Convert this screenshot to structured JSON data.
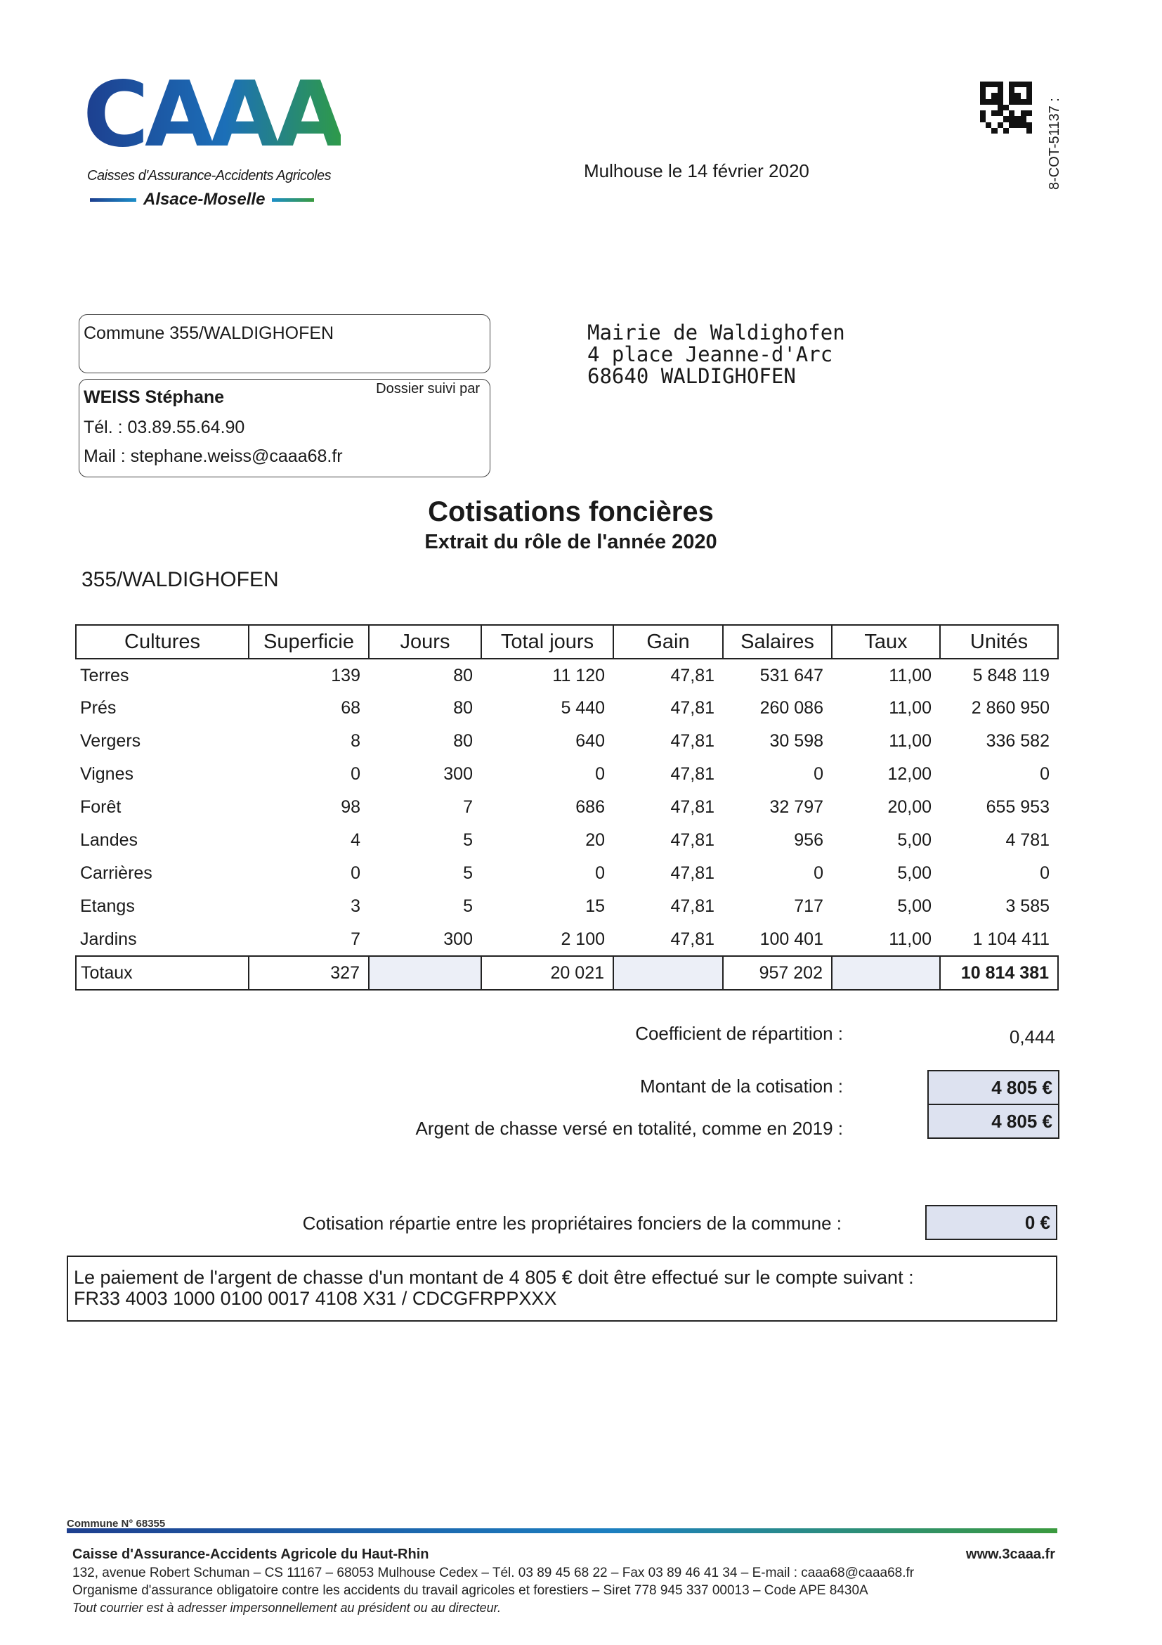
{
  "header": {
    "logo_text": "CAAA",
    "logo_subtitle": "Caisses d'Assurance-Accidents Agricoles",
    "logo_region": "Alsace-Moselle",
    "reference": "8-COT-51137 :",
    "date": "Mulhouse le 14 février 2020"
  },
  "commune_box": {
    "label": "Commune 355/WALDIGHOFEN"
  },
  "contact_box": {
    "heading": "Dossier suivi par",
    "name": "WEISS Stéphane",
    "phone": "Tél. : 03.89.55.64.90",
    "mail": "Mail : stephane.weiss@caaa68.fr"
  },
  "recipient": {
    "line1": "Mairie de Waldighofen",
    "line2": "4 place Jeanne-d'Arc",
    "line3": "68640 WALDIGHOFEN"
  },
  "title": "Cotisations foncières",
  "subtitle": "Extrait du rôle de l'année 2020",
  "commune_code": "355/WALDIGHOFEN",
  "table": {
    "headers": [
      "Cultures",
      "Superficie",
      "Jours",
      "Total jours",
      "Gain",
      "Salaires",
      "Taux",
      "Unités"
    ],
    "rows": [
      [
        "Terres",
        "139",
        "80",
        "11 120",
        "47,81",
        "531 647",
        "11,00",
        "5 848 119"
      ],
      [
        "Prés",
        "68",
        "80",
        "5 440",
        "47,81",
        "260 086",
        "11,00",
        "2 860 950"
      ],
      [
        "Vergers",
        "8",
        "80",
        "640",
        "47,81",
        "30 598",
        "11,00",
        "336 582"
      ],
      [
        "Vignes",
        "0",
        "300",
        "0",
        "47,81",
        "0",
        "12,00",
        "0"
      ],
      [
        "Forêt",
        "98",
        "7",
        "686",
        "47,81",
        "32 797",
        "20,00",
        "655 953"
      ],
      [
        "Landes",
        "4",
        "5",
        "20",
        "47,81",
        "956",
        "5,00",
        "4 781"
      ],
      [
        "Carrières",
        "0",
        "5",
        "0",
        "47,81",
        "0",
        "5,00",
        "0"
      ],
      [
        "Etangs",
        "3",
        "5",
        "15",
        "47,81",
        "717",
        "5,00",
        "3 585"
      ],
      [
        "Jardins",
        "7",
        "300",
        "2 100",
        "47,81",
        "100 401",
        "11,00",
        "1 104 411"
      ]
    ],
    "totals": [
      "Totaux",
      "327",
      "",
      "20 021",
      "",
      "957 202",
      "",
      "10 814 381"
    ]
  },
  "summary": {
    "coef_label": "Coefficient de répartition :",
    "coef_value": "0,444",
    "montant_label": "Montant de la cotisation :",
    "montant_value": "4 805 €",
    "chasse_label": "Argent de chasse versé en totalité, comme en 2019 :",
    "chasse_value": "4 805 €",
    "repartie_label": "Cotisation répartie entre les propriétaires fonciers de la commune :",
    "repartie_value": "0 €"
  },
  "payment": {
    "line1": "Le paiement de l'argent de chasse d'un montant de 4 805 € doit être effectué sur le compte suivant :",
    "line2": "FR33 4003 1000 0100 0017 4108 X31 / CDCGFRPPXXX"
  },
  "footer": {
    "commune": "Commune N° 68355",
    "org": "Caisse d'Assurance-Accidents Agricole du Haut-Rhin",
    "website": "www.3caaa.fr",
    "address": "132, avenue Robert Schuman – CS 11167 – 68053 Mulhouse Cedex – Tél. 03 89 45 68 22 – Fax 03 89 46 41 34 – E-mail : caaa68@caaa68.fr",
    "legal": "Organisme d'assurance obligatoire contre les accidents du travail agricoles et forestiers – Siret 778 945 337 00013 – Code APE 8430A",
    "note": "Tout courrier est à adresser impersonnellement au président ou au directeur."
  }
}
